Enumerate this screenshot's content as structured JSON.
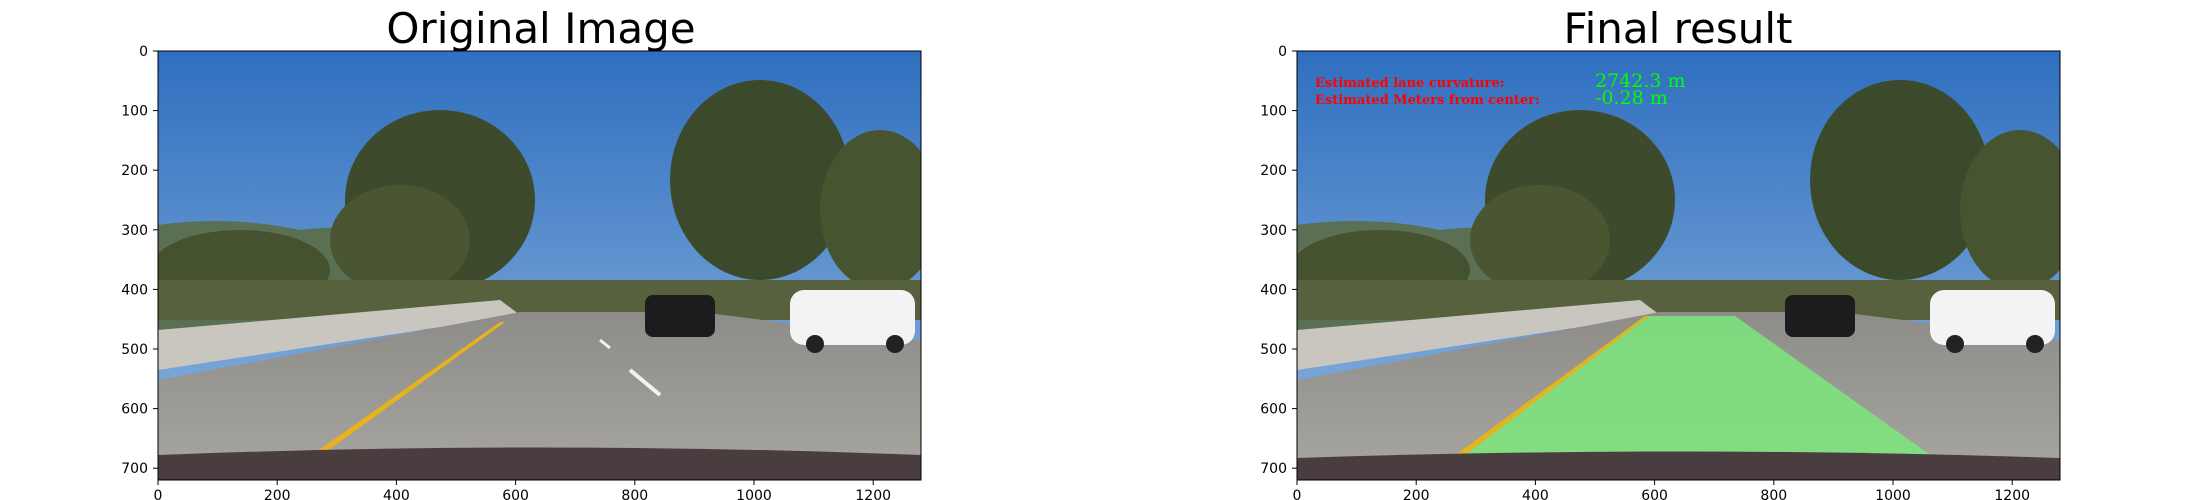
{
  "figure": {
    "panels": [
      {
        "title": "Original Image",
        "x_ticks": [
          "0",
          "200",
          "400",
          "600",
          "800",
          "1000",
          "1200"
        ],
        "y_ticks": [
          "0",
          "100",
          "200",
          "300",
          "400",
          "500",
          "600",
          "700"
        ]
      },
      {
        "title": "Final result",
        "x_ticks": [
          "0",
          "200",
          "400",
          "600",
          "800",
          "1000",
          "1200"
        ],
        "y_ticks": [
          "0",
          "100",
          "200",
          "300",
          "400",
          "500",
          "600",
          "700"
        ],
        "overlay": {
          "curvature_label": "Estimated lane curvature:",
          "curvature_value": "2742.3 m",
          "center_label": "Estimated Meters from center:",
          "center_value": "-0.28 m"
        }
      }
    ]
  },
  "colors": {
    "sky": "#3f7fc4",
    "road": "#9a9893",
    "lane_yellow": "#e8b21a",
    "lane_overlay": "#7be87b",
    "label_red": "#ff0000",
    "value_green": "#00ff00"
  }
}
